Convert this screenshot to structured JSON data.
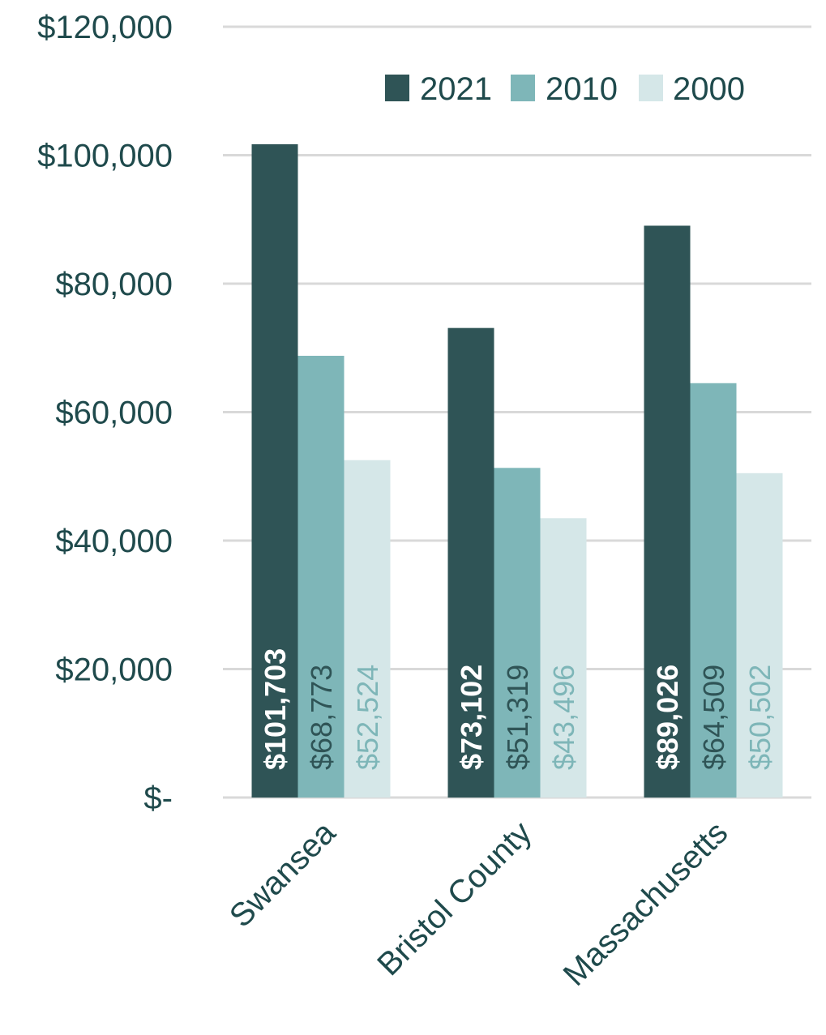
{
  "chart_data": {
    "type": "bar",
    "categories": [
      "Swansea",
      "Bristol County",
      "Massachusetts"
    ],
    "series": [
      {
        "name": "2021",
        "values": [
          101703,
          73102,
          89026
        ],
        "labels": [
          "$101,703",
          "$73,102",
          "$89,026"
        ],
        "color": "#2f5456",
        "label_color": "#ffffff",
        "label_bold": true
      },
      {
        "name": "2010",
        "values": [
          68773,
          51319,
          64509
        ],
        "labels": [
          "$68,773",
          "$51,319",
          "$64,509"
        ],
        "color": "#7eb6b8",
        "label_color": "#2f5456",
        "label_bold": false
      },
      {
        "name": "2000",
        "values": [
          52524,
          43496,
          50502
        ],
        "labels": [
          "$52,524",
          "$43,496",
          "$50,502"
        ],
        "color": "#d5e7e8",
        "label_color": "#7eb6b8",
        "label_bold": false
      }
    ],
    "yticks": [
      {
        "value": 0,
        "label": "$-"
      },
      {
        "value": 20000,
        "label": "$20,000"
      },
      {
        "value": 40000,
        "label": "$40,000"
      },
      {
        "value": 60000,
        "label": "$60,000"
      },
      {
        "value": 80000,
        "label": "$80,000"
      },
      {
        "value": 100000,
        "label": "$100,000"
      },
      {
        "value": 120000,
        "label": "$120,000"
      }
    ],
    "ylim": [
      0,
      120000
    ],
    "grid": true,
    "legend_position": "top-right",
    "gridline_color": "#d9d9d9",
    "text_color": "#1f4a4c"
  }
}
